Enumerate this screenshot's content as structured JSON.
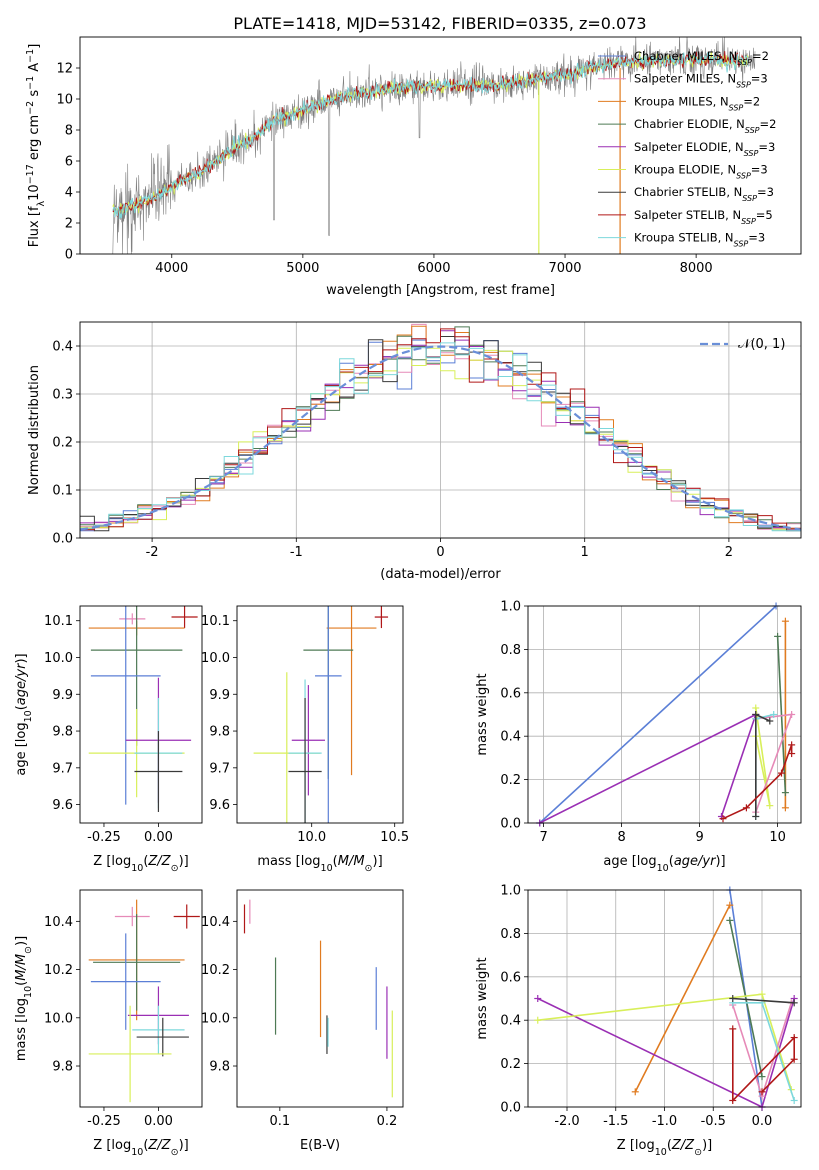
{
  "figure_title": "PLATE=1418, MJD=53142, FIBERID=0335, z=0.073",
  "colors": {
    "chabrier_miles": "#5b7fd6",
    "salpeter_miles": "#e68ab8",
    "kroupa_miles": "#e07b20",
    "chabrier_elodie": "#4e7a55",
    "salpeter_elodie": "#9a2fb4",
    "kroupa_elodie": "#d8ef5a",
    "chabrier_stelib": "#3a3a3a",
    "salpeter_stelib": "#b01818",
    "kroupa_stelib": "#7dd8dc",
    "normal": "#6a8fd8",
    "data": "#808080"
  },
  "chart_data": [
    {
      "id": "spectrum",
      "type": "line",
      "title": "PLATE=1418, MJD=53142, FIBERID=0335, z=0.073",
      "xlabel": "wavelength [Angstrom, rest frame]",
      "ylabel": "Flux [f_λ10^-17 erg cm^-2 s^-1 A^-1]",
      "xlim": [
        3300,
        8800
      ],
      "ylim": [
        0,
        14
      ],
      "xticks": [
        4000,
        5000,
        6000,
        7000,
        8000
      ],
      "yticks": [
        0,
        2,
        4,
        6,
        8,
        10,
        12
      ],
      "x": [
        3600,
        3800,
        4000,
        4200,
        4400,
        4600,
        4800,
        5000,
        5200,
        5400,
        5600,
        5800,
        6000,
        6200,
        6400,
        6600,
        6800,
        7000,
        7200,
        7400,
        7600,
        7800,
        8000,
        8200,
        8400
      ],
      "continuum": [
        2.8,
        3.4,
        4.4,
        5.2,
        6.4,
        7.4,
        8.6,
        9.3,
        9.9,
        10.3,
        10.6,
        10.8,
        10.8,
        10.9,
        10.8,
        11.0,
        11.3,
        11.5,
        12.0,
        12.3,
        12.4,
        12.5,
        12.6,
        12.5,
        12.4
      ],
      "legend_position": "upper right",
      "legend": [
        {
          "name": "Chabrier MILES, N_SSP=2",
          "text": "Chabrier MILES, N",
          "n": "2",
          "color_key": "chabrier_miles"
        },
        {
          "name": "Salpeter MILES, N_SSP=3",
          "text": "Salpeter MILES, N",
          "n": "3",
          "color_key": "salpeter_miles"
        },
        {
          "name": "Kroupa MILES, N_SSP=2",
          "text": "Kroupa MILES, N",
          "n": "2",
          "color_key": "kroupa_miles"
        },
        {
          "name": "Chabrier ELODIE, N_SSP=2",
          "text": "Chabrier ELODIE, N",
          "n": "2",
          "color_key": "chabrier_elodie"
        },
        {
          "name": "Salpeter ELODIE, N_SSP=3",
          "text": "Salpeter ELODIE, N",
          "n": "3",
          "color_key": "salpeter_elodie"
        },
        {
          "name": "Kroupa ELODIE, N_SSP=3",
          "text": "Kroupa ELODIE, N",
          "n": "3",
          "color_key": "kroupa_elodie"
        },
        {
          "name": "Chabrier STELIB, N_SSP=3",
          "text": "Chabrier STELIB, N",
          "n": "3",
          "color_key": "chabrier_stelib"
        },
        {
          "name": "Salpeter STELIB, N_SSP=5",
          "text": "Salpeter STELIB, N",
          "n": "5",
          "color_key": "salpeter_stelib"
        },
        {
          "name": "Kroupa STELIB, N_SSP=3",
          "text": "Kroupa STELIB, N",
          "n": "3",
          "color_key": "kroupa_stelib"
        }
      ]
    },
    {
      "id": "residuals",
      "type": "histogram",
      "xlabel": "(data-model)/error",
      "ylabel": "Normed distribution",
      "xlim": [
        -2.5,
        2.5
      ],
      "ylim": [
        0,
        0.45
      ],
      "xticks": [
        -2,
        -1,
        0,
        1,
        2
      ],
      "yticks": [
        0.0,
        0.1,
        0.2,
        0.3,
        0.4
      ],
      "grid": true,
      "legend_position": "upper right",
      "normal_label": "𝒩(0, 1)",
      "bins": 50
    },
    {
      "id": "age_vs_Z",
      "type": "errorbar",
      "xlabel": "Z [log10(Z/Z⊙)]",
      "ylabel": "age [log10(age/yr)]",
      "xlim": [
        -0.36,
        0.2
      ],
      "ylim": [
        9.55,
        10.14
      ],
      "xticks": [
        -0.25,
        0.0
      ],
      "yticks": [
        9.6,
        9.7,
        9.8,
        9.9,
        10.0,
        10.1
      ],
      "points": [
        {
          "color_key": "salpeter_miles",
          "x": -0.12,
          "y": 10.105,
          "xerr": 0.06,
          "yerr": 0.015
        },
        {
          "color_key": "salpeter_stelib",
          "x": 0.12,
          "y": 10.11,
          "xerr": 0.06,
          "yerr": 0.03
        },
        {
          "color_key": "kroupa_miles",
          "x": -0.1,
          "y": 10.08,
          "xerr": 0.22,
          "yerr": 0.02
        },
        {
          "color_key": "chabrier_elodie",
          "x": -0.1,
          "y": 10.02,
          "xerr": 0.21,
          "yerr": 0.26
        },
        {
          "color_key": "chabrier_miles",
          "x": -0.15,
          "y": 9.95,
          "xerr": 0.16,
          "yerr": 0.35
        },
        {
          "color_key": "kroupa_elodie",
          "x": -0.1,
          "y": 9.74,
          "xerr": 0.22,
          "yerr": 0.12
        },
        {
          "color_key": "salpeter_elodie",
          "x": 0.0,
          "y": 9.775,
          "xerr": 0.15,
          "yerr": 0.17
        },
        {
          "color_key": "kroupa_stelib",
          "x": 0.0,
          "y": 9.74,
          "xerr": 0.11,
          "yerr": 0.15
        },
        {
          "color_key": "chabrier_stelib",
          "x": 0.0,
          "y": 9.69,
          "xerr": 0.11,
          "yerr": 0.11
        }
      ]
    },
    {
      "id": "age_vs_mass",
      "type": "errorbar",
      "xlabel": "mass [log10(M/M⊙)]",
      "ylabel": "",
      "xlim": [
        9.55,
        10.55
      ],
      "ylim": [
        9.55,
        10.14
      ],
      "xticks": [
        10.0,
        10.5
      ],
      "yticks": [
        9.6,
        9.7,
        9.8,
        9.9,
        10.0,
        10.1
      ],
      "points": [
        {
          "color_key": "salpeter_miles",
          "x": 10.42,
          "y": 10.11,
          "xerr": 0.04,
          "yerr": 0.02
        },
        {
          "color_key": "salpeter_stelib",
          "x": 10.42,
          "y": 10.11,
          "xerr": 0.04,
          "yerr": 0.03
        },
        {
          "color_key": "kroupa_miles",
          "x": 10.24,
          "y": 10.08,
          "xerr": 0.15,
          "yerr": 0.4
        },
        {
          "color_key": "chabrier_elodie",
          "x": 10.1,
          "y": 10.02,
          "xerr": 0.15,
          "yerr": 0.35
        },
        {
          "color_key": "chabrier_miles",
          "x": 10.1,
          "y": 9.95,
          "xerr": 0.08,
          "yerr": 0.4
        },
        {
          "color_key": "kroupa_elodie",
          "x": 9.85,
          "y": 9.74,
          "xerr": 0.2,
          "yerr": 0.22
        },
        {
          "color_key": "salpeter_elodie",
          "x": 9.98,
          "y": 9.775,
          "xerr": 0.1,
          "yerr": 0.15
        },
        {
          "color_key": "kroupa_stelib",
          "x": 9.96,
          "y": 9.74,
          "xerr": 0.1,
          "yerr": 0.2
        },
        {
          "color_key": "chabrier_stelib",
          "x": 9.96,
          "y": 9.69,
          "xerr": 0.1,
          "yerr": 0.2
        }
      ]
    },
    {
      "id": "massweight_vs_age",
      "type": "line",
      "xlabel": "age [log10(age/yr)]",
      "ylabel": "mass weight",
      "xlim": [
        6.8,
        10.3
      ],
      "ylim": [
        0,
        1
      ],
      "xticks": [
        7,
        8,
        9,
        10
      ],
      "yticks": [
        0.0,
        0.2,
        0.4,
        0.6,
        0.8,
        1.0
      ],
      "grid": true,
      "series": [
        {
          "color_key": "chabrier_miles",
          "x": [
            6.95,
            9.98
          ],
          "y": [
            0.0,
            1.0
          ]
        },
        {
          "color_key": "salpeter_elodie",
          "x": [
            6.95,
            9.72,
            9.28,
            9.72
          ],
          "y": [
            0.0,
            0.5,
            0.03,
            0.5
          ]
        },
        {
          "color_key": "kroupa_miles",
          "x": [
            10.1,
            10.1
          ],
          "y": [
            0.07,
            0.93
          ]
        },
        {
          "color_key": "chabrier_elodie",
          "x": [
            10.0,
            10.1
          ],
          "y": [
            0.86,
            0.14
          ]
        },
        {
          "color_key": "kroupa_elodie",
          "x": [
            9.72,
            9.9,
            9.72
          ],
          "y": [
            0.53,
            0.08,
            0.4
          ]
        },
        {
          "color_key": "salpeter_miles",
          "x": [
            9.72,
            10.18,
            9.72
          ],
          "y": [
            0.05,
            0.5,
            0.48
          ]
        },
        {
          "color_key": "kroupa_stelib",
          "x": [
            9.72,
            9.72,
            9.95
          ],
          "y": [
            0.03,
            0.48,
            0.5
          ]
        },
        {
          "color_key": "chabrier_stelib",
          "x": [
            9.72,
            9.72,
            9.9
          ],
          "y": [
            0.03,
            0.5,
            0.47
          ]
        },
        {
          "color_key": "salpeter_stelib",
          "x": [
            9.3,
            9.6,
            10.05,
            10.18,
            10.18
          ],
          "y": [
            0.02,
            0.07,
            0.23,
            0.36,
            0.32
          ]
        }
      ]
    },
    {
      "id": "mass_vs_Z",
      "type": "errorbar",
      "xlabel": "Z [log10(Z/Z⊙)]",
      "ylabel": "mass [log10(M/M⊙)]",
      "xlim": [
        -0.36,
        0.2
      ],
      "ylim": [
        9.63,
        10.53
      ],
      "xticks": [
        -0.25,
        0.0
      ],
      "yticks": [
        9.8,
        10.0,
        10.2,
        10.4
      ],
      "points": [
        {
          "color_key": "salpeter_miles",
          "x": -0.12,
          "y": 10.42,
          "xerr": 0.08,
          "yerr": 0.04
        },
        {
          "color_key": "salpeter_stelib",
          "x": 0.13,
          "y": 10.42,
          "xerr": 0.06,
          "yerr": 0.05
        },
        {
          "color_key": "kroupa_miles",
          "x": -0.1,
          "y": 10.24,
          "xerr": 0.22,
          "yerr": 0.25
        },
        {
          "color_key": "chabrier_elodie",
          "x": -0.1,
          "y": 10.23,
          "xerr": 0.2,
          "yerr": 0.2
        },
        {
          "color_key": "chabrier_miles",
          "x": -0.15,
          "y": 10.15,
          "xerr": 0.16,
          "yerr": 0.2
        },
        {
          "color_key": "salpeter_elodie",
          "x": 0.0,
          "y": 10.01,
          "xerr": 0.14,
          "yerr": 0.12
        },
        {
          "color_key": "kroupa_stelib",
          "x": 0.0,
          "y": 9.95,
          "xerr": 0.12,
          "yerr": 0.1
        },
        {
          "color_key": "chabrier_stelib",
          "x": 0.02,
          "y": 9.92,
          "xerr": 0.12,
          "yerr": 0.08
        },
        {
          "color_key": "kroupa_elodie",
          "x": -0.13,
          "y": 9.85,
          "xerr": 0.19,
          "yerr": 0.2
        }
      ]
    },
    {
      "id": "mass_vs_ebv",
      "type": "errorbar",
      "xlabel": "E(B-V)",
      "ylabel": "",
      "xlim": [
        0.06,
        0.215
      ],
      "ylim": [
        9.63,
        10.53
      ],
      "xticks": [
        0.1,
        0.2
      ],
      "yticks": [
        9.8,
        10.0,
        10.2,
        10.4
      ],
      "points": [
        {
          "color_key": "salpeter_stelib",
          "x": 0.067,
          "y": 10.41,
          "yerr": 0.06
        },
        {
          "color_key": "salpeter_miles",
          "x": 0.072,
          "y": 10.44,
          "yerr": 0.05
        },
        {
          "color_key": "chabrier_elodie",
          "x": 0.096,
          "y": 10.09,
          "yerr": 0.16
        },
        {
          "color_key": "kroupa_miles",
          "x": 0.138,
          "y": 10.12,
          "yerr": 0.2
        },
        {
          "color_key": "chabrier_stelib",
          "x": 0.144,
          "y": 9.93,
          "yerr": 0.08
        },
        {
          "color_key": "kroupa_stelib",
          "x": 0.145,
          "y": 9.94,
          "yerr": 0.06
        },
        {
          "color_key": "chabrier_miles",
          "x": 0.19,
          "y": 10.08,
          "yerr": 0.13
        },
        {
          "color_key": "salpeter_elodie",
          "x": 0.2,
          "y": 9.98,
          "yerr": 0.15
        },
        {
          "color_key": "kroupa_elodie",
          "x": 0.205,
          "y": 9.85,
          "yerr": 0.18
        }
      ]
    },
    {
      "id": "massweight_vs_Z",
      "type": "line",
      "xlabel": "Z [log10(Z/Z⊙)]",
      "ylabel": "mass weight",
      "xlim": [
        -2.4,
        0.4
      ],
      "ylim": [
        0,
        1
      ],
      "xticks": [
        -2.0,
        -1.5,
        -1.0,
        -0.5,
        0.0
      ],
      "yticks": [
        0.0,
        0.2,
        0.4,
        0.6,
        0.8,
        1.0
      ],
      "grid": true,
      "series": [
        {
          "color_key": "chabrier_miles",
          "x": [
            -0.33,
            0.0
          ],
          "y": [
            1.0,
            0.0
          ]
        },
        {
          "color_key": "kroupa_miles",
          "x": [
            -1.3,
            -0.33
          ],
          "y": [
            0.07,
            0.93
          ]
        },
        {
          "color_key": "chabrier_elodie",
          "x": [
            -0.33,
            0.0
          ],
          "y": [
            0.86,
            0.14
          ]
        },
        {
          "color_key": "salpeter_elodie",
          "x": [
            -2.3,
            0.0,
            0.33
          ],
          "y": [
            0.5,
            0.0,
            0.5
          ]
        },
        {
          "color_key": "kroupa_elodie",
          "x": [
            -2.3,
            0.0,
            0.3
          ],
          "y": [
            0.4,
            0.52,
            0.08
          ]
        },
        {
          "color_key": "salpeter_miles",
          "x": [
            -0.3,
            0.0,
            0.3
          ],
          "y": [
            0.47,
            0.05,
            0.48
          ]
        },
        {
          "color_key": "kroupa_stelib",
          "x": [
            -0.3,
            0.0,
            0.33
          ],
          "y": [
            0.48,
            0.48,
            0.03
          ]
        },
        {
          "color_key": "chabrier_stelib",
          "x": [
            -0.3,
            0.33
          ],
          "y": [
            0.5,
            0.48
          ]
        },
        {
          "color_key": "salpeter_stelib",
          "x": [
            -0.3,
            -0.3,
            0.33,
            0.33,
            0.0
          ],
          "y": [
            0.36,
            0.03,
            0.32,
            0.22,
            0.07
          ]
        }
      ]
    }
  ]
}
